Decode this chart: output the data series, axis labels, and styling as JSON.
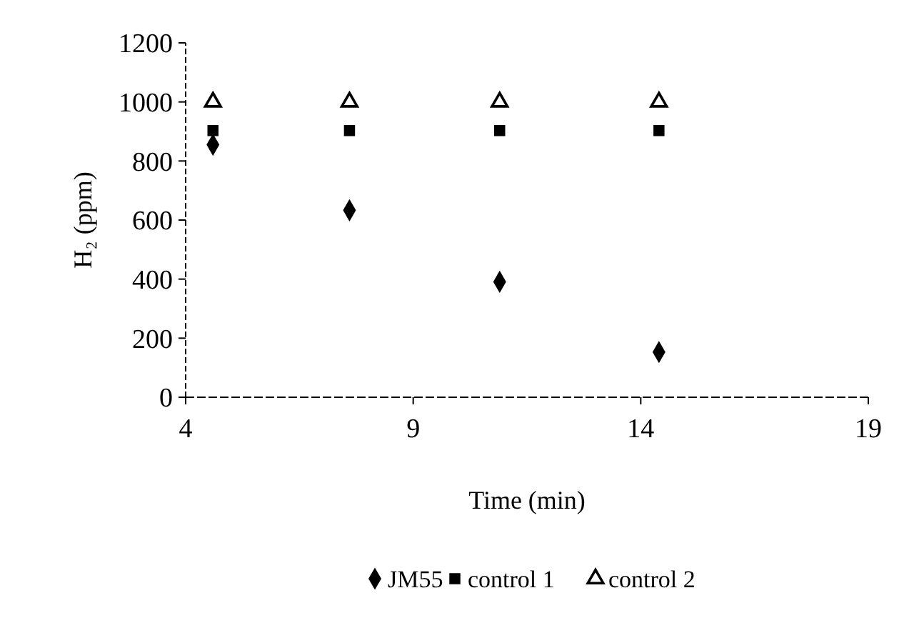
{
  "chart_data": {
    "type": "scatter",
    "xlabel": "Time (min)",
    "ylabel": "H₂ (ppm)",
    "x": [
      4.6,
      7.6,
      10.9,
      14.4
    ],
    "series": [
      {
        "name": "JM55",
        "color": "#000000",
        "marker": "diamond",
        "values": [
          855,
          633,
          391,
          153
        ]
      },
      {
        "name": "control 1",
        "color": "#000000",
        "marker": "square",
        "values": [
          903,
          903,
          903,
          903
        ]
      },
      {
        "name": "control 2",
        "color": "#000000",
        "marker": "triangle",
        "values": [
          1000,
          1000,
          1000,
          1000
        ]
      }
    ],
    "xlim": [
      4,
      19
    ],
    "xticks": [
      4,
      9,
      14,
      19
    ],
    "ylim": [
      0,
      1200
    ],
    "yticks": [
      0,
      200,
      400,
      600,
      800,
      1000,
      1200
    ],
    "grid": false,
    "legend": "bottom"
  }
}
